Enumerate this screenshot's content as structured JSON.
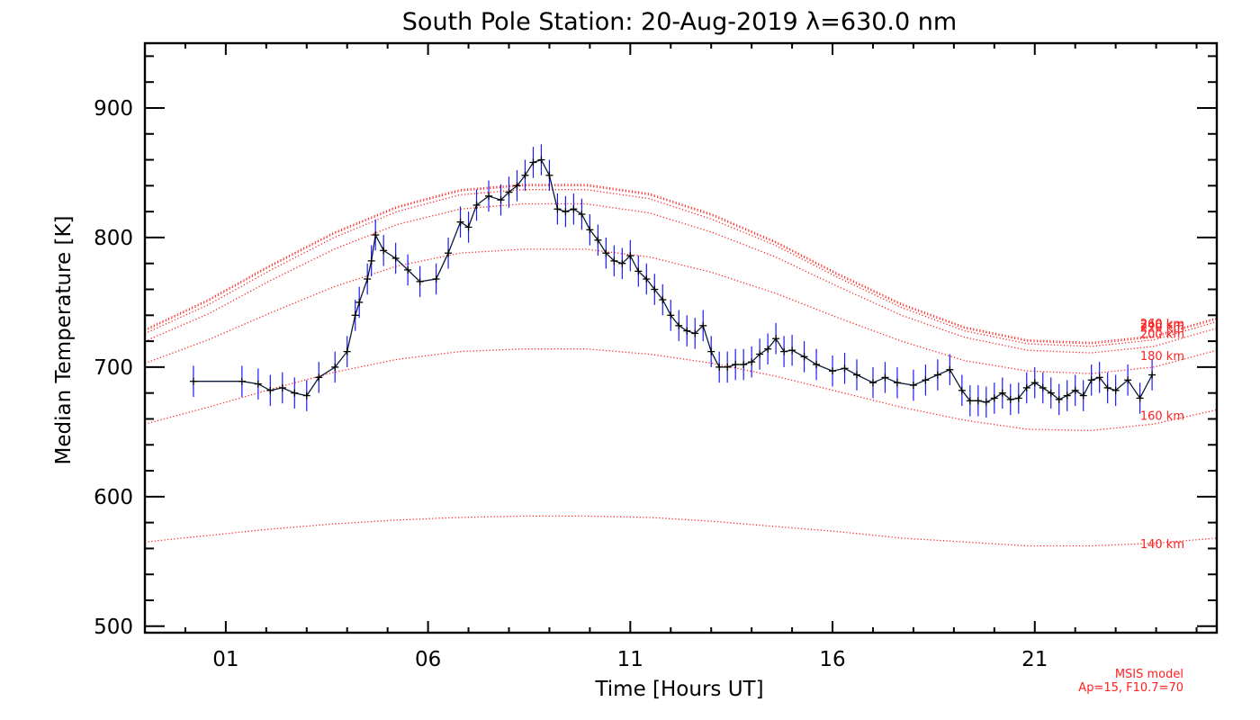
{
  "chart_data": {
    "type": "line",
    "title": "South Pole Station: 20-Aug-2019 λ=630.0 nm",
    "xlabel": "Time [Hours UT]",
    "ylabel": "Median Temperature [K]",
    "xlim": [
      -1,
      25.5
    ],
    "ylim": [
      495,
      950
    ],
    "x_ticks": [
      1,
      6,
      11,
      16,
      21
    ],
    "x_tick_labels": [
      "01",
      "06",
      "11",
      "16",
      "21"
    ],
    "y_ticks": [
      500,
      600,
      700,
      800,
      900
    ],
    "y_tick_labels": [
      "500",
      "600",
      "700",
      "800",
      "900"
    ],
    "colors": {
      "data_line": "#000000",
      "error_bars": "#1a1aff",
      "model": "#ff2020"
    },
    "series": [
      {
        "type": "errorbar",
        "error_K": 12,
        "x": [
          0.2,
          1.4,
          1.8,
          2.1,
          2.4,
          2.7,
          3.0,
          3.3,
          3.7,
          4.0,
          4.2,
          4.3,
          4.5,
          4.6,
          4.7,
          4.9,
          5.2,
          5.5,
          5.8,
          6.2,
          6.5,
          6.8,
          7.0,
          7.2,
          7.5,
          7.8,
          8.0,
          8.2,
          8.4,
          8.6,
          8.8,
          9.0,
          9.2,
          9.4,
          9.6,
          9.8,
          10.0,
          10.2,
          10.4,
          10.6,
          10.8,
          11.0,
          11.2,
          11.4,
          11.6,
          11.8,
          12.0,
          12.2,
          12.4,
          12.6,
          12.8,
          13.0,
          13.2,
          13.4,
          13.6,
          13.8,
          14.0,
          14.2,
          14.4,
          14.6,
          14.8,
          15.0,
          15.3,
          15.6,
          16.0,
          16.3,
          16.6,
          17.0,
          17.3,
          17.6,
          18.0,
          18.3,
          18.6,
          18.9,
          19.2,
          19.4,
          19.6,
          19.8,
          20.0,
          20.2,
          20.4,
          20.6,
          20.8,
          21.0,
          21.2,
          21.4,
          21.6,
          21.8,
          22.0,
          22.2,
          22.4,
          22.6,
          22.8,
          23.0,
          23.3,
          23.6,
          23.9
        ],
        "y": [
          689,
          689,
          687,
          682,
          684,
          680,
          678,
          692,
          700,
          712,
          740,
          750,
          768,
          782,
          802,
          790,
          784,
          775,
          766,
          768,
          788,
          812,
          808,
          825,
          832,
          829,
          835,
          840,
          848,
          858,
          860,
          848,
          822,
          820,
          822,
          818,
          806,
          798,
          788,
          782,
          780,
          786,
          774,
          768,
          760,
          752,
          740,
          732,
          728,
          726,
          732,
          712,
          700,
          700,
          702,
          702,
          704,
          710,
          714,
          722,
          712,
          713,
          708,
          702,
          697,
          699,
          694,
          688,
          692,
          688,
          686,
          690,
          694,
          698,
          682,
          674,
          674,
          673,
          676,
          680,
          675,
          676,
          684,
          688,
          684,
          680,
          675,
          678,
          682,
          678,
          690,
          692,
          684,
          682,
          690,
          676,
          694
        ]
      }
    ],
    "model_series": [
      {
        "label": "140 km",
        "values": [
          565,
          570,
          575,
          579,
          582,
          584,
          585,
          585,
          584,
          581,
          577,
          573,
          568,
          565,
          562,
          562,
          564,
          568
        ]
      },
      {
        "label": "160 km",
        "values": [
          656,
          669,
          683,
          696,
          706,
          712,
          714,
          714,
          710,
          703,
          693,
          681,
          669,
          659,
          652,
          651,
          656,
          667
        ]
      },
      {
        "label": "180 km",
        "values": [
          703,
          721,
          742,
          762,
          778,
          788,
          791,
          791,
          785,
          773,
          757,
          738,
          720,
          705,
          697,
          695,
          700,
          713
        ]
      },
      {
        "label": "200 km",
        "values": [
          720,
          741,
          767,
          791,
          810,
          822,
          826,
          826,
          819,
          804,
          785,
          762,
          740,
          723,
          713,
          711,
          716,
          730
        ]
      },
      {
        "label": "220 km",
        "values": [
          726,
          748,
          775,
          800,
          820,
          833,
          837,
          837,
          830,
          814,
          794,
          769,
          746,
          728,
          718,
          716,
          721,
          735
        ]
      },
      {
        "label": "240 km",
        "values": [
          728,
          751,
          778,
          803,
          823,
          836,
          840,
          840,
          833,
          817,
          796,
          771,
          748,
          730,
          720,
          718,
          723,
          737
        ]
      },
      {
        "label": "260 km",
        "values": [
          729,
          752,
          779,
          804,
          824,
          837,
          841,
          841,
          834,
          818,
          797,
          772,
          749,
          731,
          721,
          719,
          724,
          738
        ]
      }
    ],
    "model_note": [
      "MSIS model",
      "Ap=15, F10.7=70"
    ]
  }
}
